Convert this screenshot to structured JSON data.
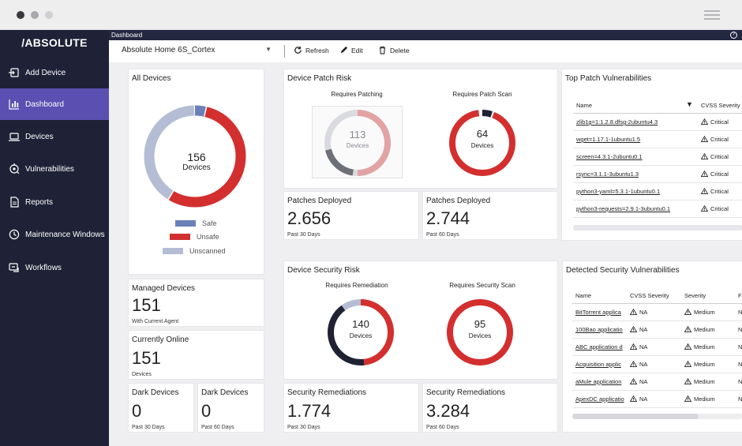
{
  "window": {
    "dot_colors": [
      "#3a3a3e",
      "#a9a9ad",
      "#cfcfd3"
    ]
  },
  "brand": {
    "logo": "/ABSOLUTE"
  },
  "sidebar": {
    "items": [
      {
        "label": "Add Device",
        "icon": "add-device-icon",
        "active": false
      },
      {
        "label": "Dashboard",
        "icon": "dashboard-icon",
        "active": true
      },
      {
        "label": "Devices",
        "icon": "laptop-icon",
        "active": false
      },
      {
        "label": "Vulnerabilities",
        "icon": "vulnerabilities-icon",
        "active": false
      },
      {
        "label": "Reports",
        "icon": "report-icon",
        "active": false
      },
      {
        "label": "Maintenance Windows",
        "icon": "clock-icon",
        "active": false
      },
      {
        "label": "Workflows",
        "icon": "workflow-icon",
        "active": false
      }
    ]
  },
  "topbar": {
    "breadcrumb": "Dashboard",
    "help": "?"
  },
  "toolbar": {
    "selected_view": "Absolute Home 6S_Cortex",
    "refresh": "Refresh",
    "edit": "Edit",
    "delete": "Delete"
  },
  "colors": {
    "safe": "#6a80b8",
    "unsafe": "#d32f2f",
    "unscanned": "#b4bdd4",
    "accent": "#5b4fb1",
    "dark_segment": "#1e2233",
    "gray_segment": "#6e7077",
    "light_gray": "#d9dbe0",
    "light_red": "#e3a3a3"
  },
  "all_devices": {
    "title": "All Devices",
    "total": "156",
    "unit": "Devices",
    "legend": [
      "Safe",
      "Unsafe",
      "Unscanned"
    ],
    "segments": [
      {
        "name": "Safe",
        "value": 6
      },
      {
        "name": "Unsafe",
        "value": 86
      },
      {
        "name": "Unscanned",
        "value": 64
      }
    ]
  },
  "managed": {
    "title": "Managed Devices",
    "value": "151",
    "caption": "With Current Agent"
  },
  "online": {
    "title": "Currently Online",
    "value": "151",
    "caption": "Devices"
  },
  "dark30": {
    "title": "Dark Devices",
    "value": "0",
    "caption": "Past 30 Days"
  },
  "dark60": {
    "title": "Dark Devices",
    "value": "0",
    "caption": "Past 60 Days"
  },
  "patch_risk": {
    "title": "Device Patch Risk",
    "left": {
      "label": "Requires Patching",
      "value": "113",
      "unit": "Devices"
    },
    "right": {
      "label": "Requires Patch Scan",
      "value": "64",
      "unit": "Devices"
    }
  },
  "patches30": {
    "title": "Patches Deployed",
    "value": "2.656",
    "caption": "Past 30 Days"
  },
  "patches60": {
    "title": "Patches Deployed",
    "value": "2.744",
    "caption": "Past 60 Days"
  },
  "security_risk": {
    "title": "Device Security Risk",
    "left": {
      "label": "Requires Remediation",
      "value": "140",
      "unit": "Devices"
    },
    "right": {
      "label": "Requires Security Scan",
      "value": "95",
      "unit": "Devices"
    }
  },
  "rem30": {
    "title": "Security Remediations",
    "value": "1.774",
    "caption": "Past 30 Days"
  },
  "rem60": {
    "title": "Security Remediations",
    "value": "3.284",
    "caption": "Past 60 Days"
  },
  "top_patch": {
    "title": "Top Patch Vulnerabilities",
    "col_name": "Name",
    "col_sev": "CVSS Severity",
    "rows": [
      {
        "name": "zlib1g=1:1.2.8.dfsg-2ubuntu4.3",
        "sev": "Critical"
      },
      {
        "name": "wget=1.17.1-1ubuntu1.5",
        "sev": "Critical"
      },
      {
        "name": "screen=4.3.1-2ubuntu0.1",
        "sev": "Critical"
      },
      {
        "name": "rsync=3.1.1-3ubuntu1.3",
        "sev": "Critical"
      },
      {
        "name": "python3-yaml=5.3.1-1ubuntu0.1",
        "sev": "Critical"
      },
      {
        "name": "python3-requests=2.9.1-3ubuntu0.1",
        "sev": "Critical"
      }
    ]
  },
  "detected": {
    "title": "Detected Security Vulnerabilities",
    "col_name": "Name",
    "col_cvss": "CVSS Severity",
    "col_sev": "Severity",
    "col_extra": "F",
    "rows": [
      {
        "name": "BitTorrent applica",
        "cvss": "NA",
        "sev": "Medium",
        "extra": "N"
      },
      {
        "name": "100Bao applicatio",
        "cvss": "NA",
        "sev": "Medium",
        "extra": "N"
      },
      {
        "name": "ABC application d",
        "cvss": "NA",
        "sev": "Medium",
        "extra": "N"
      },
      {
        "name": "Acquisition applic",
        "cvss": "NA",
        "sev": "Medium",
        "extra": "N"
      },
      {
        "name": "aMule application",
        "cvss": "NA",
        "sev": "Medium",
        "extra": "N"
      },
      {
        "name": "ApexDC applicatio",
        "cvss": "NA",
        "sev": "Medium",
        "extra": "N"
      }
    ]
  }
}
